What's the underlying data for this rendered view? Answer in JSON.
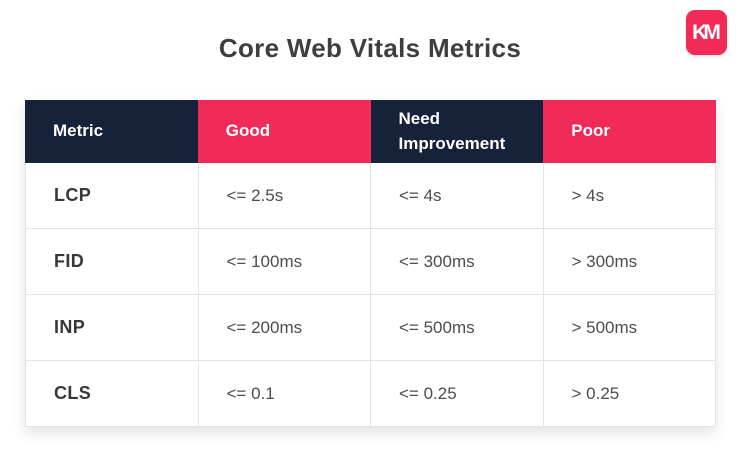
{
  "page": {
    "title": "Core Web Vitals Metrics"
  },
  "logo": {
    "monogram": "KM",
    "name": "brand-logo-km"
  },
  "colors": {
    "navy": "#16223A",
    "pink": "#F02B58",
    "border": "#E4E4E8",
    "title_text": "#3E3E3E",
    "metric_text": "#383838",
    "body_text": "#4D4D4D",
    "background": "#FFFFFF"
  },
  "chart_data": {
    "type": "table",
    "title": "Core Web Vitals Metrics",
    "columns": [
      "Metric",
      "Good",
      "Need Improvement",
      "Poor"
    ],
    "rows": [
      {
        "cells": [
          "LCP",
          "<= 2.5s",
          "<= 4s",
          "> 4s"
        ]
      },
      {
        "cells": [
          "FID",
          "<= 100ms",
          "<= 300ms",
          "> 300ms"
        ]
      },
      {
        "cells": [
          "INP",
          "<= 200ms",
          "<= 500ms",
          "> 500ms"
        ]
      },
      {
        "cells": [
          "CLS",
          "<= 0.1",
          "<= 0.25",
          "> 0.25"
        ]
      }
    ],
    "layout_hints": {
      "header_fill_pattern": [
        "navy",
        "pink",
        "navy",
        "pink"
      ],
      "header_text_color": "#FFFFFF",
      "grid": "light-gray cell borders",
      "legend": "none"
    }
  }
}
